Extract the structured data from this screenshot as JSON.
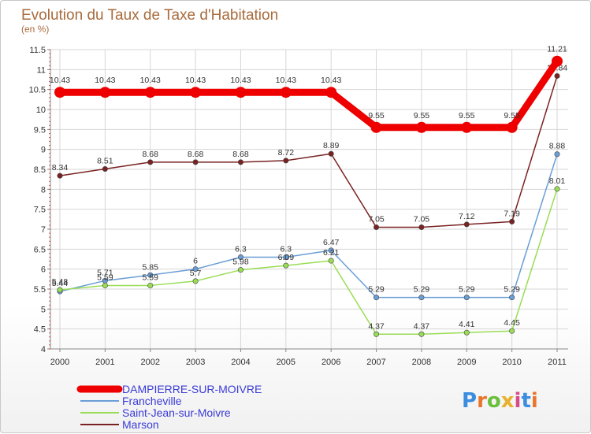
{
  "chart_data": {
    "type": "line",
    "title": "Evolution du Taux de Taxe d'Habitation",
    "subtitle": "(en %)",
    "categories": [
      "2000",
      "2001",
      "2002",
      "2003",
      "2004",
      "2005",
      "2006",
      "2007",
      "2008",
      "2009",
      "2010",
      "2011"
    ],
    "ylim": [
      4,
      11.5
    ],
    "yticks": [
      "4",
      "4.5",
      "5",
      "5.5",
      "6",
      "6.5",
      "7",
      "7.5",
      "8",
      "8.5",
      "9",
      "9.5",
      "10",
      "10.5",
      "11",
      "11.5"
    ],
    "grid": true,
    "series": [
      {
        "name": "DAMPIERRE-SUR-MOIVRE",
        "color": "#ee0000",
        "values": [
          10.43,
          10.43,
          10.43,
          10.43,
          10.43,
          10.43,
          10.43,
          9.55,
          9.55,
          9.55,
          9.55,
          11.21
        ],
        "labels": [
          "10.43",
          "10.43",
          "10.43",
          "10.43",
          "10.43",
          "10.43",
          "10.43",
          "9.55",
          "9.55",
          "9.55",
          "9.55",
          "11.21"
        ]
      },
      {
        "name": "Francheville",
        "color": "#6a9ed6",
        "values": [
          5.44,
          5.71,
          5.85,
          6,
          6.3,
          6.3,
          6.47,
          5.29,
          5.29,
          5.29,
          5.29,
          8.88
        ],
        "labels": [
          "5.44",
          "5.71",
          "5.85",
          "6",
          "6.3",
          "6.3",
          "6.47",
          "5.29",
          "5.29",
          "5.29",
          "5.29",
          "8.88"
        ]
      },
      {
        "name": "Saint-Jean-sur-Moivre",
        "color": "#99dd55",
        "values": [
          5.48,
          5.59,
          5.59,
          5.7,
          5.98,
          6.09,
          6.21,
          4.37,
          4.37,
          4.41,
          4.45,
          8.01
        ],
        "labels": [
          "5.48",
          "5.59",
          "5.59",
          "5.7",
          "5.98",
          "6.09",
          "6.21",
          "4.37",
          "4.37",
          "4.41",
          "4.45",
          "8.01"
        ]
      },
      {
        "name": "Marson",
        "color": "#7a2222",
        "values": [
          8.34,
          8.51,
          8.68,
          8.68,
          8.68,
          8.72,
          8.89,
          7.05,
          7.05,
          7.12,
          7.19,
          10.84
        ],
        "labels": [
          "8.34",
          "8.51",
          "8.68",
          "8.68",
          "8.68",
          "8.72",
          "8.89",
          "7.05",
          "7.05",
          "7.12",
          "7.19",
          "10.84"
        ]
      }
    ]
  },
  "brand": {
    "logo_text": "Proxiti",
    "letter_colors": [
      "#3b8de0",
      "#e8762c",
      "#6abf3c",
      "#e8b02c",
      "#d84b8a",
      "#3b8de0",
      "#e8762c"
    ]
  }
}
